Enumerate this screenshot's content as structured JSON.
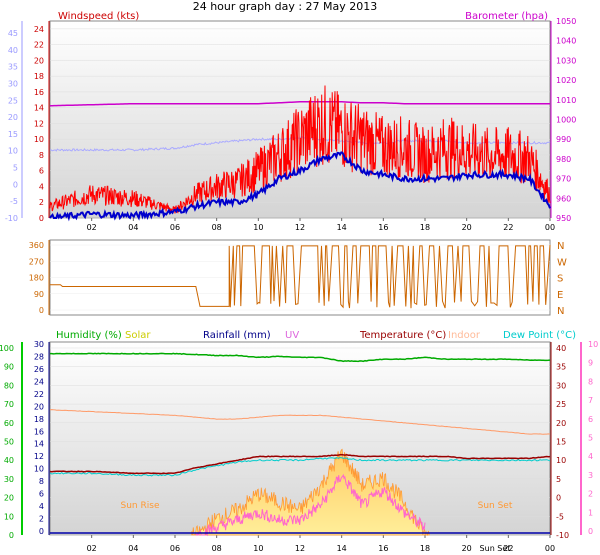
{
  "title": "24 hour graph day : 27 May 2013",
  "x_ticks": [
    "02",
    "04",
    "06",
    "08",
    "10",
    "12",
    "14",
    "16",
    "18",
    "20",
    "22",
    "00"
  ],
  "colors": {
    "wind": "#ff0000",
    "wind_avg": "#0000cc",
    "baro": "#cc00cc",
    "temp": "#990000",
    "humidity": "#00aa00",
    "dewpoint": "#00cccc",
    "indoor": "#ff9966",
    "uv": "#ff66cc",
    "solar": "#ffcc33",
    "direction": "#cc6600",
    "rain": "#0000aa",
    "gust_band": "#aaaaff"
  },
  "chart_data": [
    {
      "type": "line",
      "title": "",
      "legend_left": "Windspeed (kts)",
      "legend_right": "Barometer (hpa)",
      "y_left_ticks": [
        "24",
        "22",
        "20",
        "18",
        "16",
        "14",
        "12",
        "10",
        "8",
        "6",
        "4",
        "2",
        "0"
      ],
      "y_left_outer_ticks": [
        "45",
        "40",
        "35",
        "30",
        "25",
        "20",
        "15",
        "10",
        "5",
        "0",
        "-5",
        "-10"
      ],
      "y_right_ticks": [
        "1050",
        "1040",
        "1030",
        "1020",
        "1010",
        "1000",
        "990",
        "980",
        "970",
        "960",
        "950"
      ],
      "ylim_wind": [
        0,
        25
      ],
      "ylim_baro": [
        950,
        1050
      ],
      "x_hours": [
        0,
        2,
        4,
        6,
        7,
        8,
        9,
        10,
        11,
        12,
        13,
        14,
        15,
        16,
        17,
        18,
        19,
        20,
        21,
        22,
        23,
        24
      ],
      "series": [
        {
          "name": "Windspeed (kts)",
          "values": [
            1.5,
            3,
            2.5,
            1,
            3,
            4,
            4.5,
            6,
            8,
            10,
            12,
            11,
            10,
            9,
            9,
            8,
            9,
            8.5,
            8,
            8,
            7.5,
            3
          ]
        },
        {
          "name": "Barometer (hpa)",
          "values": [
            1007,
            1007.5,
            1008,
            1008,
            1008,
            1008,
            1008,
            1008,
            1008.5,
            1009,
            1009,
            1009,
            1008.5,
            1008.5,
            1008,
            1008,
            1008,
            1008,
            1008,
            1008,
            1008,
            1008
          ]
        }
      ],
      "avg_wind": [
        0,
        0.5,
        0.3,
        0.8,
        1.5,
        2,
        2,
        3,
        5,
        6,
        7.5,
        8,
        6,
        5.5,
        5,
        5,
        5,
        5.5,
        5.5,
        5.5,
        5,
        1.5
      ],
      "gust_band_temp": [
        9,
        9,
        9,
        9.5,
        10.5,
        11,
        11.5,
        12,
        12,
        12.5,
        12,
        11.5,
        11,
        11,
        11.5,
        11.5,
        11.5,
        11,
        11,
        11,
        11,
        11
      ]
    },
    {
      "type": "line",
      "title": "",
      "y_left_ticks": [
        "360",
        "270",
        "180",
        "90",
        "0"
      ],
      "y_right_ticks": [
        "N",
        "W",
        "S",
        "E",
        "N"
      ],
      "ylim": [
        0,
        360
      ],
      "series": [
        {
          "name": "Wind direction",
          "values": [
            140,
            130,
            130,
            130,
            130,
            130,
            130,
            130,
            20,
            20,
            350,
            50,
            350,
            40,
            350,
            60,
            350,
            40,
            350,
            60,
            350,
            10,
            360
          ]
        }
      ],
      "x_hours": [
        0,
        0.5,
        1,
        2,
        3,
        4,
        5,
        6,
        7,
        8,
        9,
        9.5,
        10.5,
        11.5,
        12.5,
        13.5,
        14.5,
        15.5,
        16.5,
        17.5,
        18.5,
        19.5,
        24
      ]
    },
    {
      "type": "line",
      "title": "",
      "legend": [
        "Humidity (%)",
        "Solar",
        "Rainfall (mm)",
        "UV",
        "Temperature (°C)",
        "Indoor",
        "Dew Point (°C)"
      ],
      "y_hum_ticks": [
        "100",
        "90",
        "80",
        "70",
        "60",
        "50",
        "40",
        "30",
        "20",
        "10",
        "0"
      ],
      "y_rain_ticks": [
        "30",
        "28",
        "26",
        "24",
        "22",
        "20",
        "18",
        "16",
        "14",
        "12",
        "10",
        "8",
        "6",
        "4",
        "2",
        "0"
      ],
      "y_temp_ticks": [
        "40",
        "35",
        "30",
        "25",
        "20",
        "15",
        "10",
        "5",
        "0",
        "-5",
        "-10"
      ],
      "y_uv_ticks": [
        "10",
        "9",
        "8",
        "7",
        "6",
        "5",
        "4",
        "3",
        "2",
        "1",
        "0"
      ],
      "ylim_hum": [
        0,
        100
      ],
      "ylim_temp": [
        -10,
        40
      ],
      "x_hours": [
        0,
        2,
        4,
        6,
        7,
        8,
        9,
        10,
        11,
        12,
        13,
        14,
        15,
        16,
        17,
        18,
        19,
        20,
        21,
        22,
        23,
        24
      ],
      "series": [
        {
          "name": "Humidity (%)",
          "values": [
            97,
            97,
            97,
            97,
            96.5,
            96,
            96,
            95,
            95.5,
            95,
            95,
            93,
            93,
            94,
            94,
            95,
            94,
            94,
            94,
            94,
            93.5,
            93.5
          ]
        },
        {
          "name": "Temperature (°C)",
          "values": [
            7,
            7,
            6.5,
            6.5,
            8,
            9,
            10,
            11,
            11,
            11,
            11,
            11.5,
            11,
            11,
            11,
            11,
            11,
            10.5,
            10.5,
            10.5,
            10.5,
            11
          ]
        },
        {
          "name": "Dew Point (°C)",
          "values": [
            6.5,
            6.5,
            6,
            6,
            7.5,
            8.5,
            9.5,
            10,
            10,
            10,
            10.5,
            10.5,
            10,
            10,
            10,
            10,
            10,
            10,
            10,
            10,
            10,
            10
          ]
        },
        {
          "name": "Indoor",
          "values": [
            23.5,
            23,
            22.5,
            22,
            21.5,
            21,
            21,
            21.5,
            22,
            22,
            22,
            21.5,
            21,
            20.5,
            20,
            19.5,
            19,
            18.5,
            18,
            17.5,
            17,
            17
          ]
        },
        {
          "name": "Solar",
          "values": [
            0,
            0,
            0,
            0,
            0,
            2,
            3,
            5,
            4,
            3,
            6,
            10,
            6,
            7,
            4,
            0,
            0,
            1,
            0,
            0,
            0,
            0
          ]
        },
        {
          "name": "UV",
          "values": [
            0,
            0,
            0,
            0,
            0,
            0.5,
            1,
            1.5,
            1,
            1,
            2,
            4,
            2,
            3,
            1.5,
            0.5,
            0.5,
            1,
            0,
            0,
            0,
            0
          ]
        }
      ],
      "annotations": [
        "Sun Rise",
        "Sun Set",
        "Sun Set"
      ],
      "x_ticks_bottom": [
        "02",
        "04",
        "06",
        "08",
        "10",
        "12",
        "14",
        "16",
        "18",
        "20",
        "22",
        "00"
      ]
    }
  ]
}
